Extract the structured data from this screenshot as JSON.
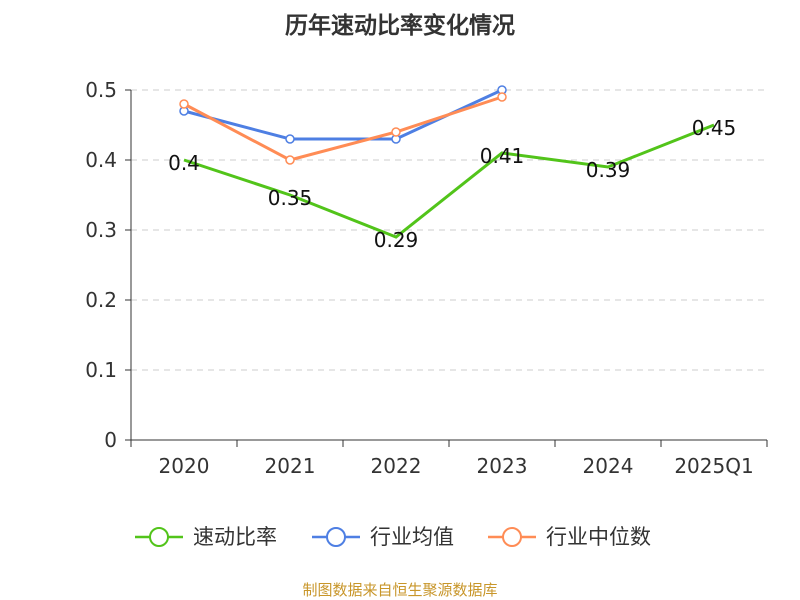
{
  "chart_data": {
    "type": "line",
    "title": "历年速动比率变化情况",
    "categories": [
      "2020",
      "2021",
      "2022",
      "2023",
      "2024",
      "2025Q1"
    ],
    "ylim": [
      0,
      0.5
    ],
    "yticks": [
      "0",
      "0.1",
      "0.2",
      "0.3",
      "0.4",
      "0.5"
    ],
    "ytick_values": [
      0,
      0.1,
      0.2,
      0.3,
      0.4,
      0.5
    ],
    "grid": true,
    "legend_position": "bottom",
    "series": [
      {
        "name": "速动比率",
        "color": "#52c41a",
        "values": [
          0.4,
          0.35,
          0.29,
          0.41,
          0.39,
          0.45
        ],
        "labels": [
          "0.4",
          "0.35",
          "0.29",
          "0.41",
          "0.39",
          "0.45"
        ]
      },
      {
        "name": "行业均值",
        "color": "#4e7fe3",
        "values": [
          0.47,
          0.43,
          0.43,
          0.5,
          null,
          null
        ]
      },
      {
        "name": "行业中位数",
        "color": "#ff8c55",
        "values": [
          0.48,
          0.4,
          0.44,
          0.49,
          null,
          null
        ]
      }
    ],
    "source": "制图数据来自恒生聚源数据库"
  }
}
